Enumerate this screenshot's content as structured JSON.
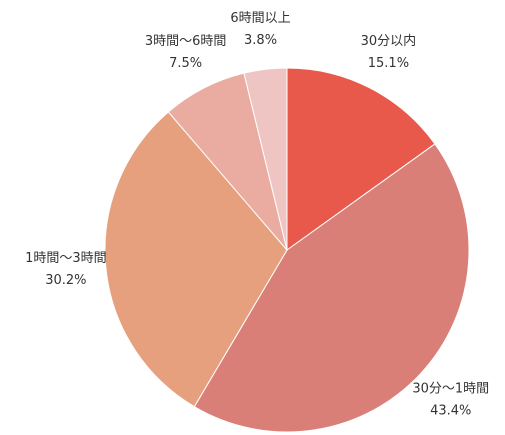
{
  "chart_data": {
    "type": "pie",
    "categories": [
      "30分以内",
      "30分〜1時間",
      "1時間〜3時間",
      "3時間〜6時間",
      "6時間以上"
    ],
    "values": [
      15.1,
      43.4,
      30.2,
      7.5,
      3.8
    ],
    "value_labels": [
      "15.1%",
      "43.4%",
      "30.2%",
      "7.5%",
      "3.8%"
    ],
    "colors": [
      "#e8594c",
      "#d97f78",
      "#e6a07e",
      "#eaaba0",
      "#efc5c3"
    ]
  }
}
